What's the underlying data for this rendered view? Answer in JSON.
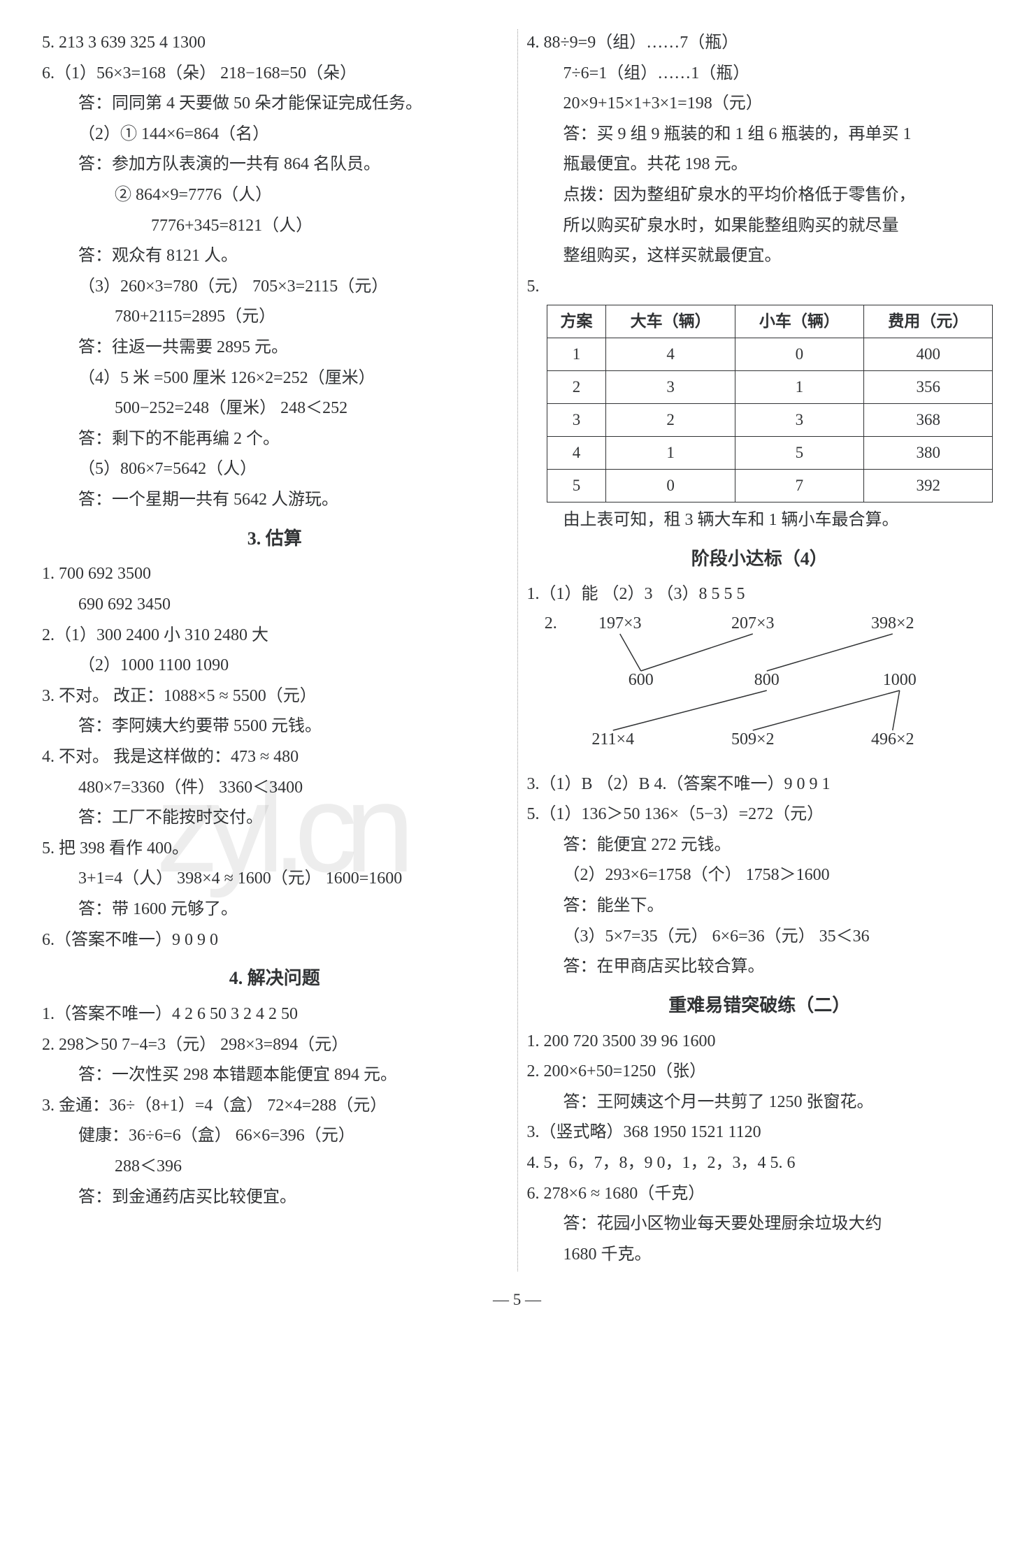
{
  "left": {
    "l5": "5. 213   3   639   325   4   1300",
    "l6_1a": "6.（1）56×3=168（朵）   218−168=50（朵）",
    "l6_1b": "答：同同第 4 天要做 50 朵才能保证完成任务。",
    "l6_2a": "（2）① 144×6=864（名）",
    "l6_2b": "答：参加方队表演的一共有 864 名队员。",
    "l6_2c": "② 864×9=7776（人）",
    "l6_2d": "7776+345=8121（人）",
    "l6_2e": "答：观众有 8121 人。",
    "l6_3a": "（3）260×3=780（元）   705×3=2115（元）",
    "l6_3b": "780+2115=2895（元）",
    "l6_3c": "答：往返一共需要 2895 元。",
    "l6_4a": "（4）5 米 =500 厘米   126×2=252（厘米）",
    "l6_4b": "500−252=248（厘米）        248＜252",
    "l6_4c": "答：剩下的不能再编 2 个。",
    "l6_5a": "（5）806×7=5642（人）",
    "l6_5b": "答：一个星期一共有 5642 人游玩。",
    "h_est": "3. 估算",
    "e1a": "1. 700   692   3500",
    "e1b": "690   692   3450",
    "e2a": "2.（1）300   2400   小   310   2480   大",
    "e2b": "（2）1000   1100   1090",
    "e3a": "3. 不对。   改正：1088×5 ≈ 5500（元）",
    "e3b": "答：李阿姨大约要带 5500 元钱。",
    "e4a": "4. 不对。   我是这样做的：473 ≈ 480",
    "e4b": "480×7=3360（件）   3360＜3400",
    "e4c": "答：工厂不能按时交付。",
    "e5a": "5. 把 398 看作 400。",
    "e5b": "3+1=4（人）   398×4 ≈ 1600（元）   1600=1600",
    "e5c": "答：带 1600 元够了。",
    "e6": "6.（答案不唯一）9   0   9   0",
    "h_solve": "4. 解决问题",
    "s1": "1.（答案不唯一）4   2   6   50   3   2   4   2   50",
    "s2a": "2. 298＞50   7−4=3（元）   298×3=894（元）",
    "s2b": "答：一次性买 298 本错题本能便宜 894 元。",
    "s3a": "3. 金通：36÷（8+1）=4（盒）   72×4=288（元）",
    "s3b": "健康：36÷6=6（盒）   66×6=396（元）",
    "s3c": "288＜396",
    "s3d": "答：到金通药店买比较便宜。"
  },
  "right": {
    "r4a": "4. 88÷9=9（组）……7（瓶）",
    "r4b": "7÷6=1（组）……1（瓶）",
    "r4c": "20×9+15×1+3×1=198（元）",
    "r4d": "答：买 9 组 9 瓶装的和 1 组 6 瓶装的，再单买 1",
    "r4e": "瓶最便宜。共花 198 元。",
    "r4f": "点拨：因为整组矿泉水的平均价格低于零售价，",
    "r4g": "所以购买矿泉水时，如果能整组购买的就尽量",
    "r4h": "整组购买，这样买就最便宜。",
    "table": {
      "headers": [
        "方案",
        "大车（辆）",
        "小车（辆）",
        "费用（元）"
      ],
      "rows": [
        [
          "1",
          "4",
          "0",
          "400"
        ],
        [
          "2",
          "3",
          "1",
          "356"
        ],
        [
          "3",
          "2",
          "3",
          "368"
        ],
        [
          "4",
          "1",
          "5",
          "380"
        ],
        [
          "5",
          "0",
          "7",
          "392"
        ]
      ]
    },
    "r5note": "由上表可知，租 3 辆大车和 1 辆小车最合算。",
    "h_stage": "阶段小达标（4）",
    "p1": "1.（1）能  （2）3  （3）8   5   5   5",
    "p2label": "2. ",
    "match": {
      "top": [
        "197×3",
        "207×3",
        "398×2"
      ],
      "mid": [
        "600",
        "800",
        "1000"
      ],
      "bot": [
        "211×4",
        "509×2",
        "496×2"
      ],
      "top_x": [
        120,
        310,
        510
      ],
      "mid_x": [
        150,
        330,
        520
      ],
      "bot_x": [
        110,
        310,
        510
      ],
      "edges_top": [
        [
          0,
          0
        ],
        [
          1,
          0
        ],
        [
          2,
          1
        ]
      ],
      "edges_bot": [
        [
          0,
          1
        ],
        [
          1,
          2
        ],
        [
          2,
          2
        ]
      ],
      "line_color": "#313335",
      "fontsize": 24
    },
    "p3": "3.（1）B  （2）B   4.（答案不唯一）9   0   9   1",
    "p5a": "5.（1）136＞50   136×（5−3）=272（元）",
    "p5b": "答：能便宜 272 元钱。",
    "p5c": "（2）293×6=1758（个）   1758＞1600",
    "p5d": "答：能坐下。",
    "p5e": "（3）5×7=35（元）   6×6=36（元）   35＜36",
    "p5f": "答：在甲商店买比较合算。",
    "h_hard": "重难易错突破练（二）",
    "h1": "1. 200   720   3500   39   96   1600",
    "h2a": "2. 200×6+50=1250（张）",
    "h2b": "答：王阿姨这个月一共剪了 1250 张窗花。",
    "h3": "3.（竖式略）368   1950   1521   1120",
    "h4": "4. 5，6，7，8，9     0，1，2，3，4   5. 6",
    "h6a": "6. 278×6 ≈ 1680（千克）",
    "h6b": "答：花园小区物业每天要处理厨余垃圾大约",
    "h6c": "1680 千克。"
  },
  "pagenum": "5"
}
